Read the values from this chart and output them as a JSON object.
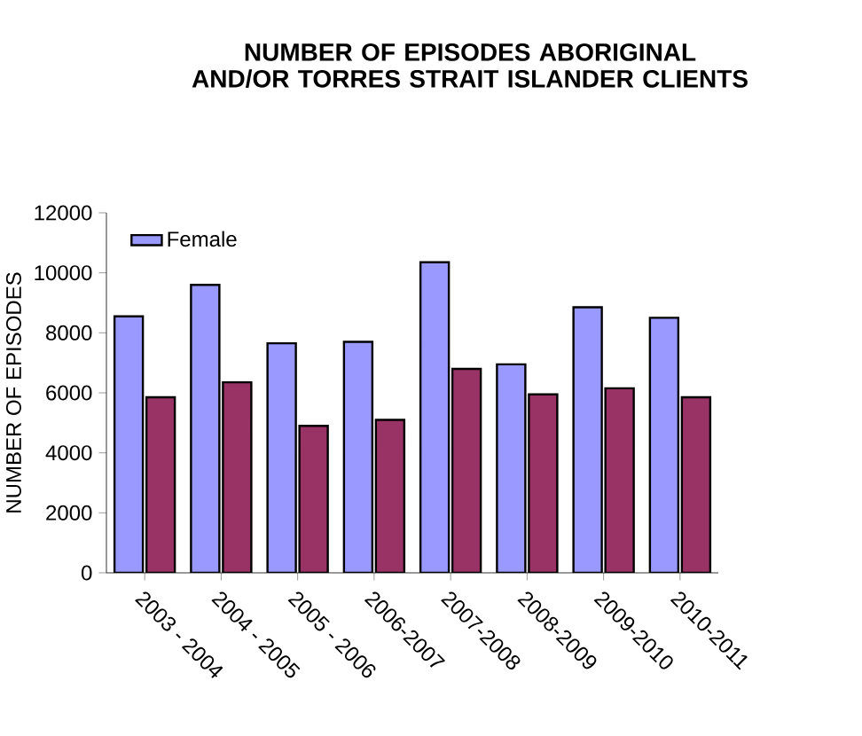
{
  "chart_data": {
    "type": "bar",
    "title": "NUMBER OF EPISODES ABORIGINAL AND/OR TORRES STRAIT ISLANDER CLIENTS",
    "ylabel": "NUMBER OF EPISODES",
    "categories": [
      "2003 - 2004",
      "2004 - 2005",
      "2005 - 2006",
      "2006-2007",
      "2007-2008",
      "2008-2009",
      "2009-2010",
      "2010-2011"
    ],
    "series": [
      {
        "name": "Female",
        "color": "#9999ff",
        "values": [
          8550,
          9600,
          7650,
          7700,
          10350,
          6950,
          8850,
          8500
        ]
      },
      {
        "color": "#993366",
        "values": [
          5850,
          6350,
          4900,
          5100,
          6800,
          5950,
          6150,
          5850
        ]
      }
    ],
    "ylim": [
      0,
      12000
    ],
    "yticks": [
      0,
      2000,
      4000,
      6000,
      8000,
      10000,
      12000
    ],
    "legend": "top left"
  }
}
